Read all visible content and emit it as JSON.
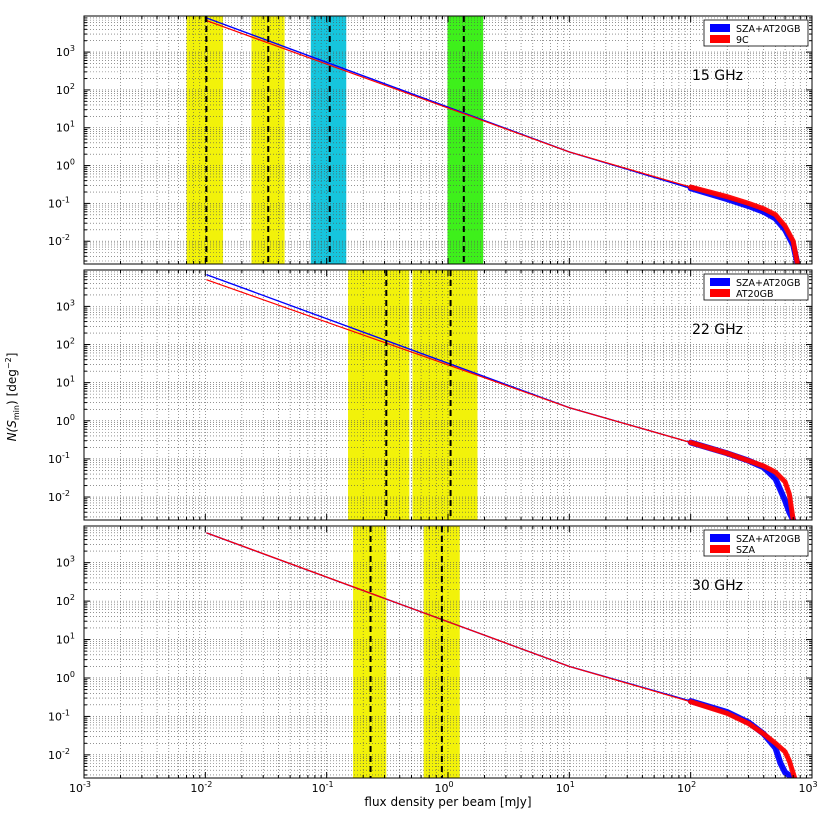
{
  "chart_data": {
    "type": "line",
    "xscale": "log",
    "yscale": "log",
    "xlim": [
      0.001,
      1000
    ],
    "ylim": [
      0.0025,
      9000
    ],
    "grid": true,
    "xlabel": "flux density per beam [mJy]",
    "ylabel": "N(S_min) [deg^-2]",
    "ylabel_parts": {
      "main": "N(S",
      "sub": "min",
      "close": ")",
      "unit": "[deg",
      "sup": "−2",
      "unit_close": "]"
    },
    "x_ticks": [
      {
        "base": "10",
        "exp": "-3"
      },
      {
        "base": "10",
        "exp": "-2"
      },
      {
        "base": "10",
        "exp": "-1"
      },
      {
        "base": "10",
        "exp": "0"
      },
      {
        "base": "10",
        "exp": "1"
      },
      {
        "base": "10",
        "exp": "2"
      },
      {
        "base": "10",
        "exp": "3"
      }
    ],
    "y_ticks": [
      {
        "base": "10",
        "exp": "-2"
      },
      {
        "base": "10",
        "exp": "-1"
      },
      {
        "base": "10",
        "exp": "0"
      },
      {
        "base": "10",
        "exp": "1"
      },
      {
        "base": "10",
        "exp": "2"
      },
      {
        "base": "10",
        "exp": "3"
      }
    ],
    "panels": [
      {
        "label": "15 GHz",
        "legend": [
          {
            "name": "SZA+AT20GB",
            "color": "#0000ff"
          },
          {
            "name": "9C",
            "color": "#ff0000"
          }
        ],
        "bands": [
          {
            "x": [
              0.007,
              0.014
            ],
            "color": "#f2f20a"
          },
          {
            "x": [
              0.024,
              0.045
            ],
            "color": "#f2f20a"
          },
          {
            "x": [
              0.074,
              0.145
            ],
            "color": "#16c5dd"
          },
          {
            "x": [
              0.99,
              1.95
            ],
            "color": "#3ef01b"
          }
        ],
        "dashed": [
          0.0102,
          0.033,
          0.106,
          1.35
        ],
        "series": [
          {
            "name": "SZA+AT20GB",
            "color": "#0000ff",
            "x": [
              0.0102,
              10,
              100,
              200,
              300,
              400,
              500,
              600,
              700,
              760
            ],
            "y": [
              8000,
              2.3,
              0.25,
              0.13,
              0.085,
              0.06,
              0.04,
              0.02,
              0.008,
              0.0025
            ]
          },
          {
            "name": "9C",
            "color": "#ff0000",
            "x": [
              0.0102,
              10,
              100,
              200,
              300,
              400,
              500,
              600,
              700,
              760
            ],
            "y": [
              6800,
              2.3,
              0.27,
              0.15,
              0.1,
              0.072,
              0.05,
              0.025,
              0.01,
              0.0025
            ]
          }
        ]
      },
      {
        "label": "22 GHz",
        "legend": [
          {
            "name": "SZA+AT20GB",
            "color": "#0000ff"
          },
          {
            "name": "AT20GB",
            "color": "#ff0000"
          }
        ],
        "bands": [
          {
            "x": [
              0.15,
              0.48
            ],
            "color": "#f2f20a"
          },
          {
            "x": [
              0.51,
              1.75
            ],
            "color": "#f2f20a"
          }
        ],
        "dashed": [
          0.31,
          1.05
        ],
        "series": [
          {
            "name": "SZA+AT20GB",
            "color": "#0000ff",
            "x": [
              0.0102,
              10,
              100,
              200,
              300,
              400,
              500,
              600,
              650,
              700
            ],
            "y": [
              6800,
              2.2,
              0.27,
              0.14,
              0.09,
              0.06,
              0.03,
              0.008,
              0.004,
              0.0025
            ]
          },
          {
            "name": "AT20GB",
            "color": "#ff0000",
            "x": [
              0.0102,
              10,
              100,
              200,
              300,
              400,
              500,
              600,
              650,
              700
            ],
            "y": [
              5000,
              2.2,
              0.27,
              0.14,
              0.09,
              0.065,
              0.045,
              0.025,
              0.012,
              0.0025
            ]
          }
        ]
      },
      {
        "label": "30 GHz",
        "legend": [
          {
            "name": "SZA+AT20GB",
            "color": "#0000ff"
          },
          {
            "name": "SZA",
            "color": "#ff0000"
          }
        ],
        "bands": [
          {
            "x": [
              0.165,
              0.31
            ],
            "color": "#f2f20a"
          },
          {
            "x": [
              0.63,
              1.25
            ],
            "color": "#f2f20a"
          }
        ],
        "dashed": [
          0.23,
          0.89
        ],
        "series": [
          {
            "name": "SZA+AT20GB",
            "color": "#0000ff",
            "x": [
              0.0102,
              10,
              100,
              200,
              300,
              400,
              500,
              550,
              600,
              700
            ],
            "y": [
              6000,
              2.0,
              0.25,
              0.13,
              0.07,
              0.035,
              0.015,
              0.006,
              0.0035,
              0.0025
            ]
          },
          {
            "name": "SZA",
            "color": "#ff0000",
            "x": [
              0.0102,
              10,
              100,
              200,
              300,
              400,
              500,
              600,
              650,
              720
            ],
            "y": [
              6000,
              2.0,
              0.24,
              0.12,
              0.065,
              0.035,
              0.02,
              0.012,
              0.007,
              0.0025
            ]
          }
        ]
      }
    ]
  }
}
